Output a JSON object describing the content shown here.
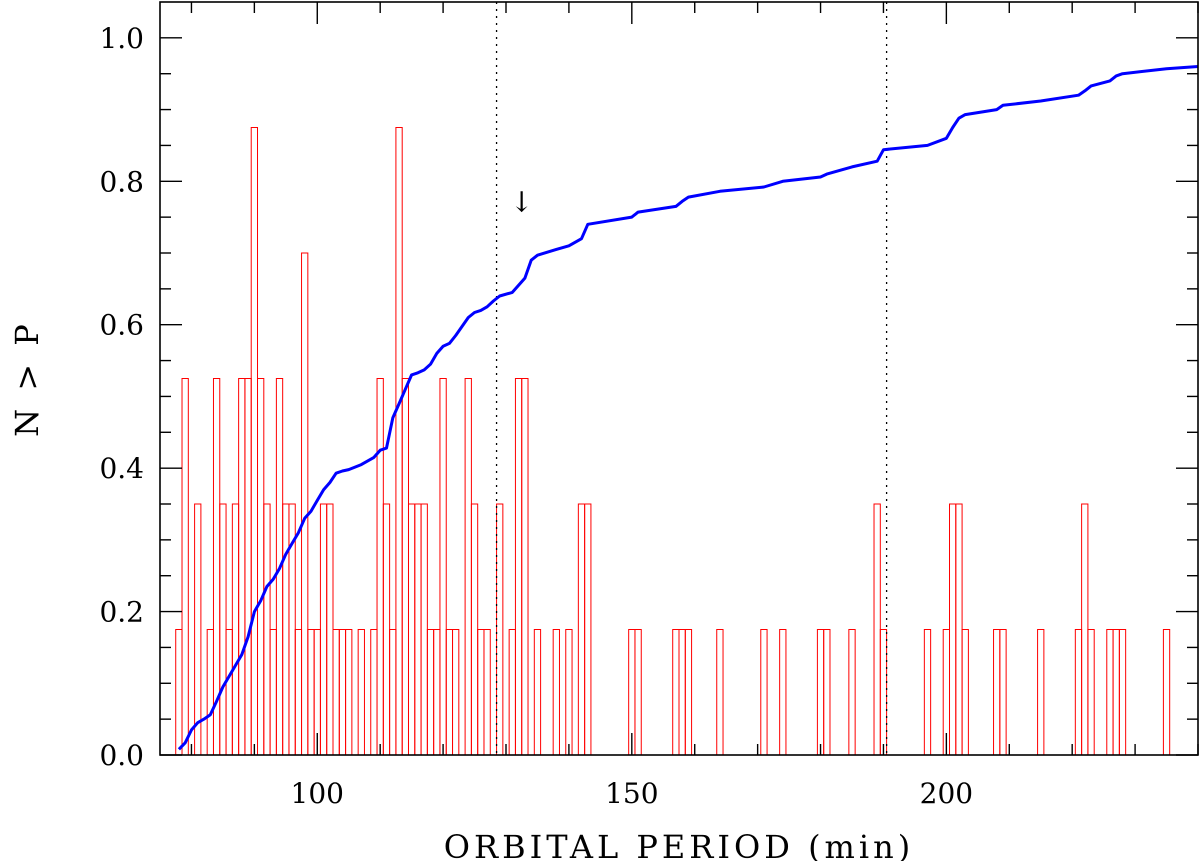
{
  "chart_data": {
    "type": "line",
    "title": "",
    "xlabel": "ORBITAL PERIOD (min)",
    "ylabel": "N > P",
    "xlim": [
      75,
      240
    ],
    "ylim": [
      0,
      1.05
    ],
    "x_ticks": [
      100,
      150,
      200
    ],
    "x_tick_labels": [
      "100",
      "150",
      "200"
    ],
    "y_ticks": [
      0,
      0.2,
      0.4,
      0.6,
      0.8,
      1.0
    ],
    "y_tick_labels": [
      "0.0",
      "0.2",
      "0.4",
      "0.6",
      "0.8",
      "1.0"
    ],
    "grid": false,
    "vertical_reference_lines": [
      128.5,
      190.5
    ],
    "annotation": {
      "symbol": "↓",
      "x": 132.5,
      "y": 0.8
    },
    "histogram": {
      "color": "#ff0000",
      "bin_width": 1,
      "bins": [
        [
          78,
          0.175
        ],
        [
          79,
          0.525
        ],
        [
          81,
          0.35
        ],
        [
          83,
          0.175
        ],
        [
          84,
          0.525
        ],
        [
          85,
          0.35
        ],
        [
          86,
          0.175
        ],
        [
          87,
          0.35
        ],
        [
          88,
          0.525
        ],
        [
          89,
          0.525
        ],
        [
          90,
          0.875
        ],
        [
          91,
          0.525
        ],
        [
          92,
          0.35
        ],
        [
          93,
          0.175
        ],
        [
          94,
          0.525
        ],
        [
          95,
          0.35
        ],
        [
          96,
          0.35
        ],
        [
          97,
          0.175
        ],
        [
          98,
          0.7
        ],
        [
          99,
          0.175
        ],
        [
          100,
          0.175
        ],
        [
          101,
          0.35
        ],
        [
          102,
          0.35
        ],
        [
          103,
          0.175
        ],
        [
          104,
          0.175
        ],
        [
          105,
          0.175
        ],
        [
          107,
          0.175
        ],
        [
          109,
          0.175
        ],
        [
          110,
          0.525
        ],
        [
          111,
          0.35
        ],
        [
          112,
          0.175
        ],
        [
          113,
          0.875
        ],
        [
          114,
          0.525
        ],
        [
          115,
          0.35
        ],
        [
          116,
          0.35
        ],
        [
          117,
          0.35
        ],
        [
          118,
          0.175
        ],
        [
          119,
          0.175
        ],
        [
          120,
          0.525
        ],
        [
          121,
          0.175
        ],
        [
          122,
          0.175
        ],
        [
          124,
          0.525
        ],
        [
          125,
          0.35
        ],
        [
          126,
          0.175
        ],
        [
          127,
          0.175
        ],
        [
          129,
          0.35
        ],
        [
          131,
          0.175
        ],
        [
          132,
          0.525
        ],
        [
          133,
          0.525
        ],
        [
          135,
          0.175
        ],
        [
          138,
          0.175
        ],
        [
          140,
          0.175
        ],
        [
          142,
          0.35
        ],
        [
          143,
          0.35
        ],
        [
          150,
          0.175
        ],
        [
          151,
          0.175
        ],
        [
          157,
          0.175
        ],
        [
          158,
          0.175
        ],
        [
          159,
          0.175
        ],
        [
          164,
          0.175
        ],
        [
          171,
          0.175
        ],
        [
          174,
          0.175
        ],
        [
          180,
          0.175
        ],
        [
          181,
          0.175
        ],
        [
          185,
          0.175
        ],
        [
          189,
          0.35
        ],
        [
          190,
          0.175
        ],
        [
          197,
          0.175
        ],
        [
          200,
          0.175
        ],
        [
          201,
          0.35
        ],
        [
          202,
          0.35
        ],
        [
          203,
          0.175
        ],
        [
          208,
          0.175
        ],
        [
          209,
          0.175
        ],
        [
          215,
          0.175
        ],
        [
          221,
          0.175
        ],
        [
          222,
          0.35
        ],
        [
          223,
          0.175
        ],
        [
          226,
          0.175
        ],
        [
          227,
          0.175
        ],
        [
          228,
          0.175
        ],
        [
          235,
          0.175
        ]
      ]
    },
    "series": [
      {
        "color": "#0000ff",
        "x": [
          78,
          79,
          80,
          81,
          82,
          83,
          84,
          85,
          86,
          87,
          88,
          89,
          90,
          91,
          92,
          93,
          94,
          95,
          96,
          97,
          98,
          99,
          100,
          101,
          102,
          103,
          104,
          105,
          107,
          109,
          110,
          111,
          112,
          113,
          114,
          115,
          116,
          117,
          118,
          119,
          120,
          121,
          122,
          124,
          125,
          126,
          127,
          128,
          129,
          131,
          132,
          133,
          134,
          135,
          138,
          140,
          142,
          143,
          150,
          151,
          157,
          158,
          159,
          164,
          171,
          174,
          180,
          181,
          185,
          189,
          190,
          197,
          200,
          201,
          202,
          203,
          208,
          209,
          215,
          221,
          222,
          223,
          226,
          227,
          228,
          235,
          240
        ],
        "y": [
          0.008,
          0.017,
          0.035,
          0.045,
          0.05,
          0.056,
          0.075,
          0.095,
          0.11,
          0.125,
          0.14,
          0.165,
          0.2,
          0.215,
          0.235,
          0.245,
          0.26,
          0.28,
          0.295,
          0.31,
          0.33,
          0.34,
          0.355,
          0.37,
          0.38,
          0.393,
          0.396,
          0.398,
          0.405,
          0.415,
          0.425,
          0.428,
          0.47,
          0.49,
          0.51,
          0.53,
          0.533,
          0.537,
          0.545,
          0.56,
          0.57,
          0.574,
          0.585,
          0.61,
          0.617,
          0.62,
          0.625,
          0.633,
          0.64,
          0.645,
          0.655,
          0.665,
          0.69,
          0.697,
          0.705,
          0.71,
          0.72,
          0.74,
          0.75,
          0.757,
          0.765,
          0.772,
          0.778,
          0.786,
          0.792,
          0.8,
          0.806,
          0.81,
          0.82,
          0.828,
          0.844,
          0.85,
          0.86,
          0.875,
          0.888,
          0.893,
          0.9,
          0.906,
          0.912,
          0.92,
          0.926,
          0.933,
          0.94,
          0.947,
          0.95,
          0.957,
          0.96
        ]
      }
    ]
  }
}
